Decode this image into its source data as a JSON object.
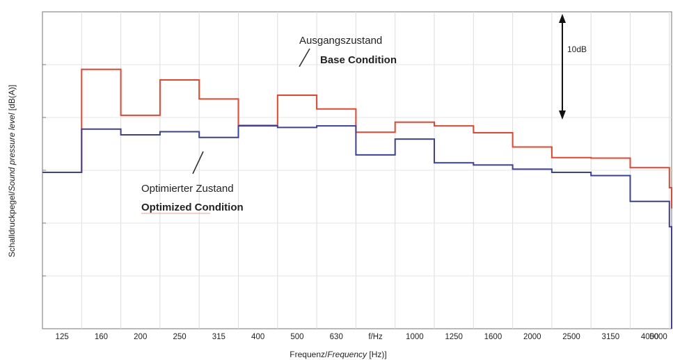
{
  "chart_data": {
    "type": "line",
    "step": true,
    "xlabel": "Frequenz/Frequency [Hz)]",
    "xlabel_parts": {
      "a": "Frequenz/",
      "b": "Frequency",
      "c": " [Hz)]"
    },
    "ylabel": "Schalldruckpegel/Sound pressure level [dB(A)]",
    "ylabel_parts": {
      "a": "Schalldruckpegel/",
      "b": "Sound pressure level",
      "c": " [dB(A)]"
    },
    "tick_labels": [
      "125",
      "160",
      "200",
      "250",
      "315",
      "400",
      "500",
      "630",
      "f/Hz",
      "1000",
      "1250",
      "1600",
      "2000",
      "2500",
      "3150",
      "4000",
      "5000"
    ],
    "y_grid_count": 6,
    "grid": true,
    "scale_note": "10dB",
    "series": [
      {
        "name": "Ausgangszustand / Base Condition",
        "color": "#e8432c",
        "values": [
          0.0,
          19.5,
          10.8,
          17.5,
          13.9,
          8.9,
          14.6,
          12.0,
          7.6,
          9.5,
          8.8,
          7.5,
          4.8,
          2.8,
          2.7,
          0.9,
          -2.9
        ]
      },
      {
        "name": "Optimierter Zustand / Optimized Condition",
        "color": "#3b3f9e",
        "values": [
          0.0,
          8.2,
          7.1,
          7.7,
          6.6,
          8.8,
          8.5,
          8.8,
          3.3,
          6.3,
          1.8,
          1.4,
          0.6,
          0.0,
          -0.6,
          -5.5,
          -10.3
        ]
      }
    ],
    "annotations": {
      "base_de": "Ausgangszustand",
      "base_en": "Base Condition",
      "opt_de": "Optimierter Zustand",
      "opt_en": "Optimized Condition"
    }
  }
}
